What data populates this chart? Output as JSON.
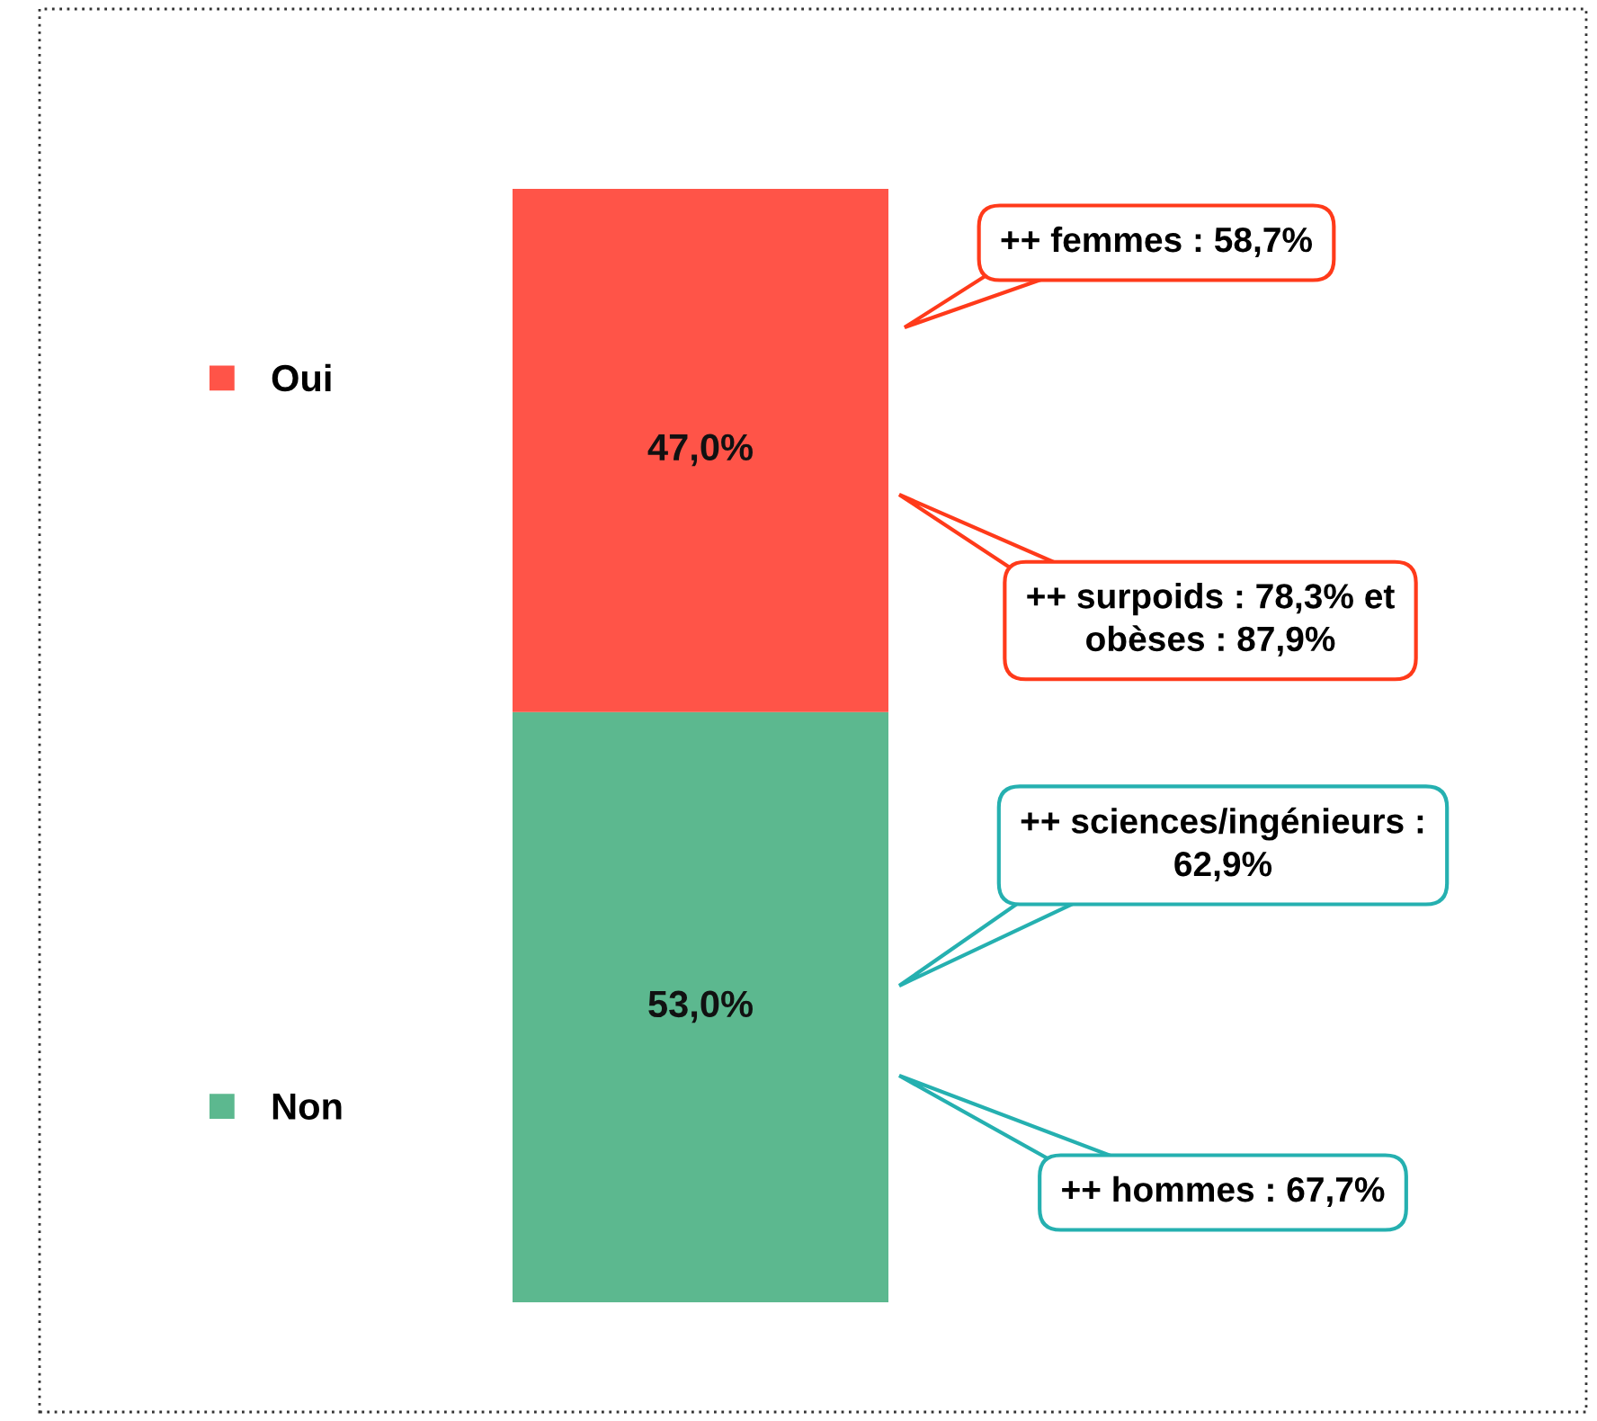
{
  "chart_data": {
    "type": "bar",
    "stacked": true,
    "categories": [
      null
    ],
    "ylim": [
      0,
      100
    ],
    "legend": "left",
    "series": [
      {
        "name": "Non",
        "color": "#5cb88f",
        "values": [
          53.0
        ],
        "value_labels": [
          "53,0%"
        ]
      },
      {
        "name": "Oui",
        "color": "#ff5448",
        "values": [
          47.0
        ],
        "value_labels": [
          "47,0%"
        ]
      }
    ],
    "annotations": [
      "++ femmes : 58,7%",
      "++ surpoids : 78,3% et\nobèses : 87,9%",
      "++ sciences/ingénieurs :\n62,9%",
      "++ hommes : 67,7%"
    ]
  }
}
